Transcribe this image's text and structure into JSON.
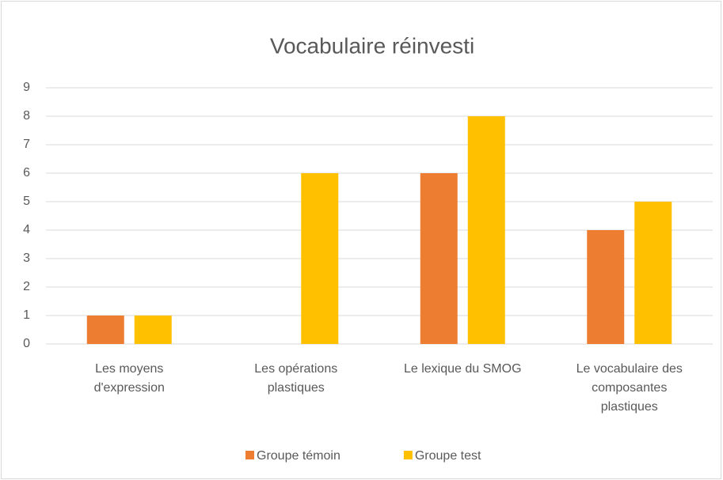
{
  "chart_data": {
    "type": "bar",
    "title": "Vocabulaire réinvesti",
    "categories": [
      "Les moyens d'expression",
      "Les opérations plastiques",
      "Le lexique du SMOG",
      "Le vocabulaire des composantes plastiques"
    ],
    "series": [
      {
        "name": "Groupe témoin",
        "color": "#ed7d31",
        "values": [
          1,
          0,
          6,
          4
        ]
      },
      {
        "name": "Groupe test",
        "color": "#ffc000",
        "values": [
          1,
          6,
          8,
          5
        ]
      }
    ],
    "ylim": [
      0,
      9
    ],
    "yticks": [
      0,
      1,
      2,
      3,
      4,
      5,
      6,
      7,
      8,
      9
    ],
    "grid": true,
    "legend": "bottom"
  }
}
